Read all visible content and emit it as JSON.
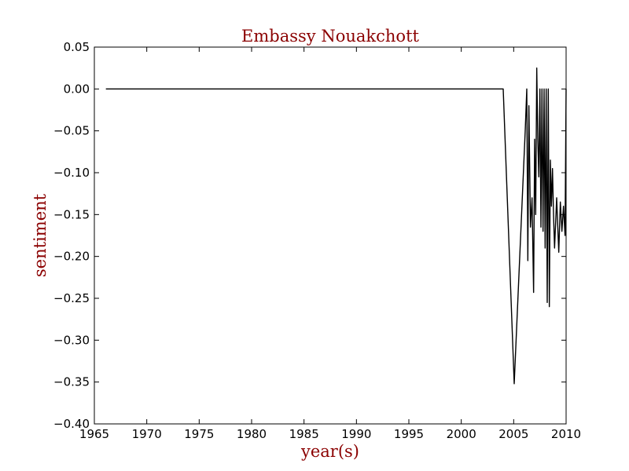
{
  "chart_data": {
    "type": "line",
    "title": "Embassy Nouakchott",
    "xlabel": "year(s)",
    "ylabel": "sentiment",
    "xlim": [
      1965,
      2010
    ],
    "ylim": [
      -0.4,
      0.05
    ],
    "xticks": [
      1965,
      1970,
      1975,
      1980,
      1985,
      1990,
      1995,
      2000,
      2005,
      2010
    ],
    "xtick_labels": [
      "1965",
      "1970",
      "1975",
      "1980",
      "1985",
      "1990",
      "1995",
      "2000",
      "2005",
      "2010"
    ],
    "yticks": [
      0.05,
      0.0,
      -0.05,
      -0.1,
      -0.15,
      -0.2,
      -0.25,
      -0.3,
      -0.35,
      -0.4
    ],
    "ytick_labels": [
      "0.05",
      "0.00",
      "−0.05",
      "−0.10",
      "−0.15",
      "−0.20",
      "−0.25",
      "−0.30",
      "−0.35",
      "−0.40"
    ],
    "grid": false,
    "colors": {
      "title": "#8b0000",
      "axis_label": "#8b0000",
      "series": "#000000"
    },
    "series": [
      {
        "x": [
          1966.1,
          2004.0,
          2005.05,
          2006.1,
          2006.25,
          2006.35,
          2006.45,
          2006.6,
          2006.75,
          2006.9,
          2007.0,
          2007.1,
          2007.2,
          2007.3,
          2007.4,
          2007.5,
          2007.6,
          2007.7,
          2007.8,
          2007.9,
          2008.0,
          2008.1,
          2008.2,
          2008.3,
          2008.4,
          2008.5,
          2008.6,
          2008.7,
          2008.8,
          2008.9,
          2009.1,
          2009.3,
          2009.45,
          2009.6,
          2009.75,
          2009.9,
          2010.0
        ],
        "y": [
          0.0,
          0.0,
          -0.352,
          -0.05,
          0.0,
          -0.205,
          -0.02,
          -0.165,
          -0.13,
          -0.243,
          -0.06,
          -0.15,
          0.025,
          -0.06,
          -0.105,
          0.0,
          -0.165,
          0.0,
          -0.17,
          0.0,
          -0.19,
          0.0,
          -0.255,
          0.0,
          -0.26,
          -0.085,
          -0.14,
          -0.095,
          -0.15,
          -0.19,
          -0.13,
          -0.195,
          -0.135,
          -0.17,
          -0.14,
          -0.175,
          0.0
        ]
      }
    ]
  }
}
